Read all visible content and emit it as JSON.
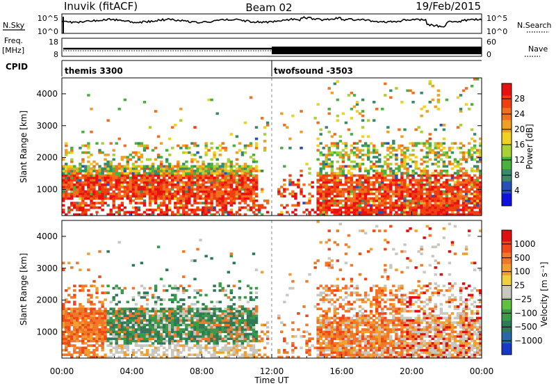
{
  "header": {
    "station": "Inuvik (fitACF)",
    "beam": "Beam 02",
    "date": "19/Feb/2015"
  },
  "top_panels": {
    "nsky": {
      "label": "N.Sky",
      "ticks_left": [
        "10^5",
        "10^0"
      ],
      "right_label": "N.Search",
      "ticks_right": [
        "10^5",
        "10^0"
      ]
    },
    "freq": {
      "label_top": "Freq.",
      "label_unit": "[MHz]",
      "ticks_left": [
        "18",
        "8"
      ],
      "right_label": "Nave",
      "ticks_right": [
        "60",
        "0"
      ]
    },
    "cpid": {
      "label": "CPID",
      "segments": [
        {
          "name": "themis 3300",
          "start_hour": 0
        },
        {
          "name": "twofsound -3503",
          "start_hour": 12
        }
      ]
    }
  },
  "chart_data": [
    {
      "type": "heatmap",
      "name": "Power",
      "ylabel": "Slant Range [km]",
      "ylim": [
        180,
        4500
      ],
      "xlim_hours": [
        0,
        24
      ],
      "yticks": [
        1000,
        2000,
        3000,
        4000
      ],
      "colorbar": {
        "label": "Power [dB]",
        "ticks": [
          "4",
          "8",
          "12",
          "16",
          "20",
          "24",
          "28"
        ],
        "colors": [
          "#1010e0",
          "#2850b8",
          "#3a8a6a",
          "#4ab040",
          "#a8d038",
          "#f0d020",
          "#f0a020",
          "#f07020",
          "#f04010",
          "#e81010"
        ]
      }
    },
    {
      "type": "heatmap",
      "name": "Velocity",
      "ylabel": "Slant Range [km]",
      "xlabel": "Time UT",
      "ylim": [
        180,
        4500
      ],
      "xlim_hours": [
        0,
        24
      ],
      "yticks": [
        1000,
        2000,
        3000,
        4000
      ],
      "xticks": [
        "00:00",
        "04:00",
        "08:00",
        "12:00",
        "16:00",
        "20:00",
        "00:00"
      ],
      "colorbar": {
        "label": "Velocity [m s⁻¹]",
        "ticks": [
          "1000",
          "500",
          "100",
          "25",
          "−25",
          "−100",
          "−500",
          "−1000"
        ],
        "colors": [
          "#1838c8",
          "#2868a8",
          "#307858",
          "#3a9a4a",
          "#60c040",
          "#c8c8c0",
          "#f0d040",
          "#f0a030",
          "#f07828",
          "#f04818",
          "#e01010"
        ]
      }
    }
  ]
}
